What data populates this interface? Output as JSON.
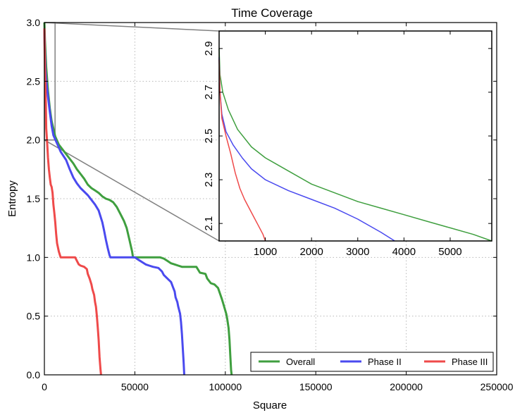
{
  "chart_data": {
    "type": "line",
    "title": "Time Coverage",
    "xlabel": "Square",
    "ylabel": "Entropy",
    "xlim": [
      0,
      250000
    ],
    "ylim": [
      0,
      3.0
    ],
    "xticks": [
      0,
      50000,
      100000,
      150000,
      200000,
      250000
    ],
    "yticks": [
      0.0,
      0.5,
      1.0,
      1.5,
      2.0,
      2.5,
      3.0
    ],
    "grid": true,
    "legend": {
      "placement": "lower-right",
      "ncol": 3
    },
    "series": [
      {
        "name": "Overall",
        "color": "#3f9f3f",
        "points": [
          [
            0,
            3.0
          ],
          [
            300,
            2.85
          ],
          [
            1000,
            2.62
          ],
          [
            2000,
            2.42
          ],
          [
            3000,
            2.27
          ],
          [
            4000,
            2.16
          ],
          [
            6000,
            2.03
          ],
          [
            8000,
            1.96
          ],
          [
            10000,
            1.92
          ],
          [
            13000,
            1.86
          ],
          [
            16000,
            1.8
          ],
          [
            18000,
            1.75
          ],
          [
            20000,
            1.71
          ],
          [
            22000,
            1.67
          ],
          [
            24000,
            1.62
          ],
          [
            26000,
            1.59
          ],
          [
            28000,
            1.57
          ],
          [
            30000,
            1.55
          ],
          [
            32000,
            1.52
          ],
          [
            34000,
            1.5
          ],
          [
            36000,
            1.49
          ],
          [
            38000,
            1.47
          ],
          [
            40000,
            1.43
          ],
          [
            42000,
            1.37
          ],
          [
            44000,
            1.31
          ],
          [
            45500,
            1.25
          ],
          [
            47000,
            1.15
          ],
          [
            48500,
            1.05
          ],
          [
            49000,
            1.0
          ],
          [
            58000,
            1.0
          ],
          [
            60000,
            1.0
          ],
          [
            64000,
            1.0
          ],
          [
            66000,
            0.99
          ],
          [
            68000,
            0.97
          ],
          [
            70000,
            0.95
          ],
          [
            72000,
            0.94
          ],
          [
            74000,
            0.93
          ],
          [
            76000,
            0.92
          ],
          [
            80000,
            0.92
          ],
          [
            84000,
            0.92
          ],
          [
            86000,
            0.87
          ],
          [
            89000,
            0.86
          ],
          [
            90000,
            0.82
          ],
          [
            92000,
            0.78
          ],
          [
            94000,
            0.77
          ],
          [
            96000,
            0.74
          ],
          [
            98000,
            0.65
          ],
          [
            99000,
            0.6
          ],
          [
            100500,
            0.52
          ],
          [
            101000,
            0.48
          ],
          [
            101800,
            0.4
          ],
          [
            102300,
            0.3
          ],
          [
            102800,
            0.15
          ],
          [
            103200,
            0.04
          ],
          [
            103500,
            0.0
          ]
        ]
      },
      {
        "name": "Phase II",
        "color": "#4a4aef",
        "points": [
          [
            0,
            2.95
          ],
          [
            200,
            2.8
          ],
          [
            600,
            2.6
          ],
          [
            1200,
            2.48
          ],
          [
            2000,
            2.37
          ],
          [
            3000,
            2.24
          ],
          [
            4000,
            2.12
          ],
          [
            5000,
            2.04
          ],
          [
            7000,
            1.97
          ],
          [
            9000,
            1.9
          ],
          [
            12000,
            1.83
          ],
          [
            14000,
            1.75
          ],
          [
            16000,
            1.68
          ],
          [
            18000,
            1.63
          ],
          [
            20000,
            1.59
          ],
          [
            22000,
            1.56
          ],
          [
            24000,
            1.53
          ],
          [
            26000,
            1.49
          ],
          [
            28000,
            1.45
          ],
          [
            30000,
            1.4
          ],
          [
            31000,
            1.35
          ],
          [
            32000,
            1.3
          ],
          [
            33000,
            1.23
          ],
          [
            34000,
            1.15
          ],
          [
            35000,
            1.08
          ],
          [
            36000,
            1.02
          ],
          [
            36500,
            1.0
          ],
          [
            50000,
            1.0
          ],
          [
            52000,
            0.98
          ],
          [
            54000,
            0.96
          ],
          [
            56000,
            0.94
          ],
          [
            58000,
            0.93
          ],
          [
            60000,
            0.92
          ],
          [
            63000,
            0.91
          ],
          [
            65000,
            0.88
          ],
          [
            66000,
            0.85
          ],
          [
            68000,
            0.82
          ],
          [
            70000,
            0.79
          ],
          [
            71000,
            0.75
          ],
          [
            72000,
            0.71
          ],
          [
            72500,
            0.66
          ],
          [
            73500,
            0.62
          ],
          [
            74000,
            0.58
          ],
          [
            75000,
            0.52
          ],
          [
            75500,
            0.45
          ],
          [
            76000,
            0.35
          ],
          [
            76500,
            0.22
          ],
          [
            77000,
            0.1
          ],
          [
            77300,
            0.0
          ]
        ]
      },
      {
        "name": "Phase III",
        "color": "#ef4a4a",
        "points": [
          [
            0,
            2.95
          ],
          [
            100,
            2.8
          ],
          [
            300,
            2.6
          ],
          [
            600,
            2.45
          ],
          [
            800,
            2.3
          ],
          [
            1000,
            2.1
          ],
          [
            1500,
            1.98
          ],
          [
            2000,
            1.85
          ],
          [
            2500,
            1.75
          ],
          [
            3000,
            1.68
          ],
          [
            3500,
            1.62
          ],
          [
            4000,
            1.6
          ],
          [
            4500,
            1.55
          ],
          [
            5000,
            1.45
          ],
          [
            5500,
            1.38
          ],
          [
            6000,
            1.3
          ],
          [
            6500,
            1.2
          ],
          [
            7000,
            1.12
          ],
          [
            8000,
            1.05
          ],
          [
            9000,
            1.0
          ],
          [
            17000,
            1.0
          ],
          [
            18000,
            0.97
          ],
          [
            19000,
            0.94
          ],
          [
            20000,
            0.93
          ],
          [
            22000,
            0.92
          ],
          [
            23500,
            0.9
          ],
          [
            24000,
            0.86
          ],
          [
            25000,
            0.82
          ],
          [
            26000,
            0.77
          ],
          [
            26500,
            0.73
          ],
          [
            27500,
            0.68
          ],
          [
            28000,
            0.62
          ],
          [
            28500,
            0.58
          ],
          [
            29000,
            0.5
          ],
          [
            29500,
            0.4
          ],
          [
            30000,
            0.3
          ],
          [
            30500,
            0.15
          ],
          [
            31000,
            0.05
          ],
          [
            31300,
            0.0
          ]
        ]
      }
    ],
    "inset": {
      "xlim": [
        0,
        5900
      ],
      "ylim": [
        2.02,
        2.98
      ],
      "xticks": [
        1000,
        2000,
        3000,
        4000,
        5000
      ],
      "yticks": [
        2.1,
        2.3,
        2.5,
        2.7,
        2.9
      ],
      "zoom_region": {
        "x": [
          0,
          5900
        ],
        "y": [
          2.0,
          3.0
        ]
      },
      "series": [
        {
          "name": "Overall",
          "color": "#3f9f3f",
          "points": [
            [
              0,
              2.9
            ],
            [
              20,
              2.78
            ],
            [
              80,
              2.7
            ],
            [
              200,
              2.62
            ],
            [
              400,
              2.53
            ],
            [
              700,
              2.45
            ],
            [
              1000,
              2.4
            ],
            [
              1500,
              2.34
            ],
            [
              2000,
              2.28
            ],
            [
              2500,
              2.24
            ],
            [
              3000,
              2.2
            ],
            [
              3500,
              2.17
            ],
            [
              4000,
              2.14
            ],
            [
              4500,
              2.11
            ],
            [
              5000,
              2.08
            ],
            [
              5500,
              2.05
            ],
            [
              5900,
              2.02
            ]
          ]
        },
        {
          "name": "Phase II",
          "color": "#4a4aef",
          "points": [
            [
              0,
              2.86
            ],
            [
              20,
              2.7
            ],
            [
              60,
              2.6
            ],
            [
              150,
              2.52
            ],
            [
              300,
              2.46
            ],
            [
              500,
              2.4
            ],
            [
              700,
              2.35
            ],
            [
              1000,
              2.3
            ],
            [
              1500,
              2.25
            ],
            [
              2000,
              2.21
            ],
            [
              2500,
              2.17
            ],
            [
              3000,
              2.12
            ],
            [
              3500,
              2.06
            ],
            [
              3800,
              2.02
            ]
          ]
        },
        {
          "name": "Phase III",
          "color": "#ef4a4a",
          "points": [
            [
              0,
              2.85
            ],
            [
              20,
              2.7
            ],
            [
              60,
              2.58
            ],
            [
              150,
              2.5
            ],
            [
              250,
              2.42
            ],
            [
              350,
              2.33
            ],
            [
              450,
              2.26
            ],
            [
              550,
              2.21
            ],
            [
              650,
              2.17
            ],
            [
              750,
              2.13
            ],
            [
              850,
              2.09
            ],
            [
              950,
              2.05
            ],
            [
              1000,
              2.02
            ]
          ]
        }
      ]
    }
  }
}
